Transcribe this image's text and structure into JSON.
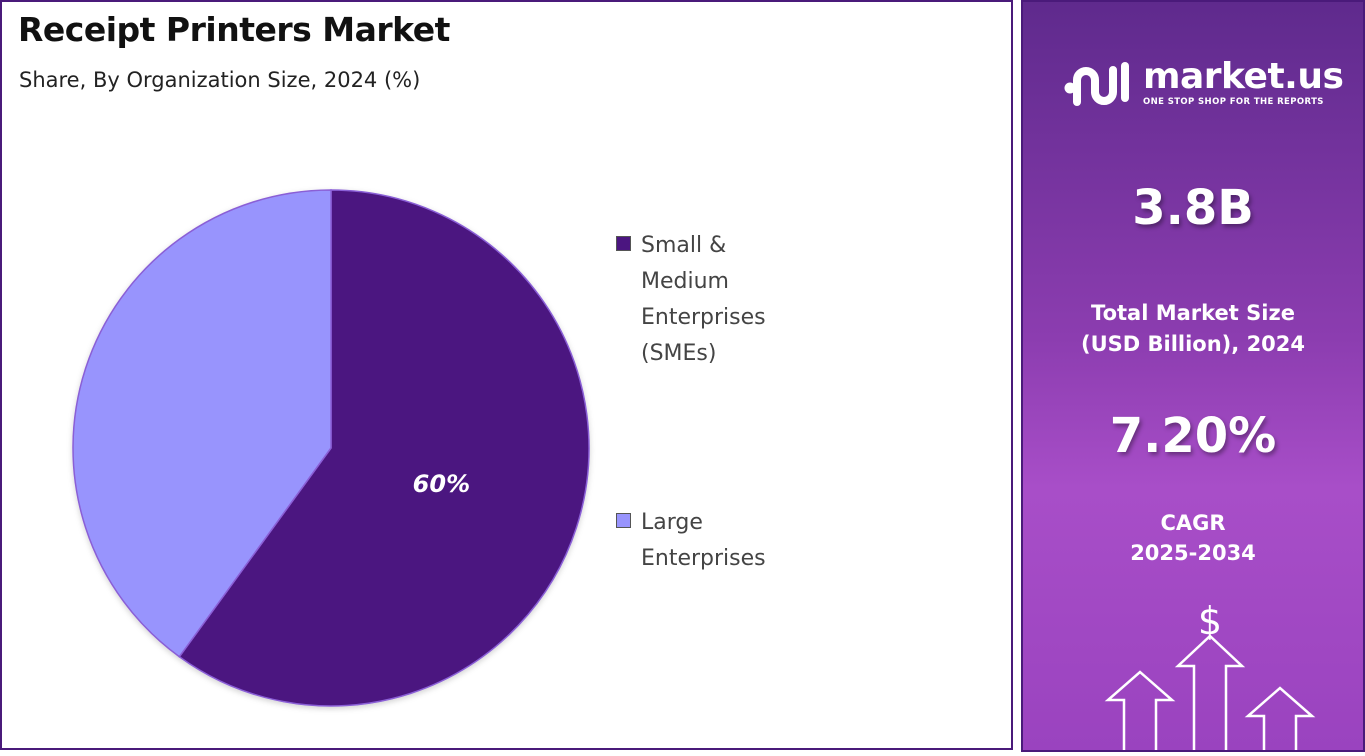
{
  "chart_data": {
    "type": "pie",
    "title": "Receipt Printers Market",
    "subtitle": "Share, By Organization Size, 2024 (%)",
    "slices": [
      {
        "name": "Small & Medium Enterprises (SMEs)",
        "value": 60,
        "label": "60%",
        "color": "#4b1580"
      },
      {
        "name": "Large Enterprises",
        "value": 40,
        "label": "",
        "color": "#9894fd"
      }
    ],
    "legend_position": "right"
  },
  "side_panel": {
    "brand_name": "market.us",
    "brand_tagline": "ONE STOP SHOP FOR THE REPORTS",
    "market_size_value": "3.8B",
    "market_size_label_line1": "Total Market Size",
    "market_size_label_line2": "(USD Billion), 2024",
    "cagr_value": "7.20%",
    "cagr_label_line1": "CAGR",
    "cagr_label_line2": "2025-2034",
    "dollar_symbol": "$",
    "icons": [
      "market-us-logo-icon",
      "growth-arrows-icon",
      "dollar-icon"
    ]
  },
  "colors": {
    "border": "#4a1a7a",
    "panel_top": "#5f2a8d",
    "panel_bottom": "#a84ec8"
  }
}
